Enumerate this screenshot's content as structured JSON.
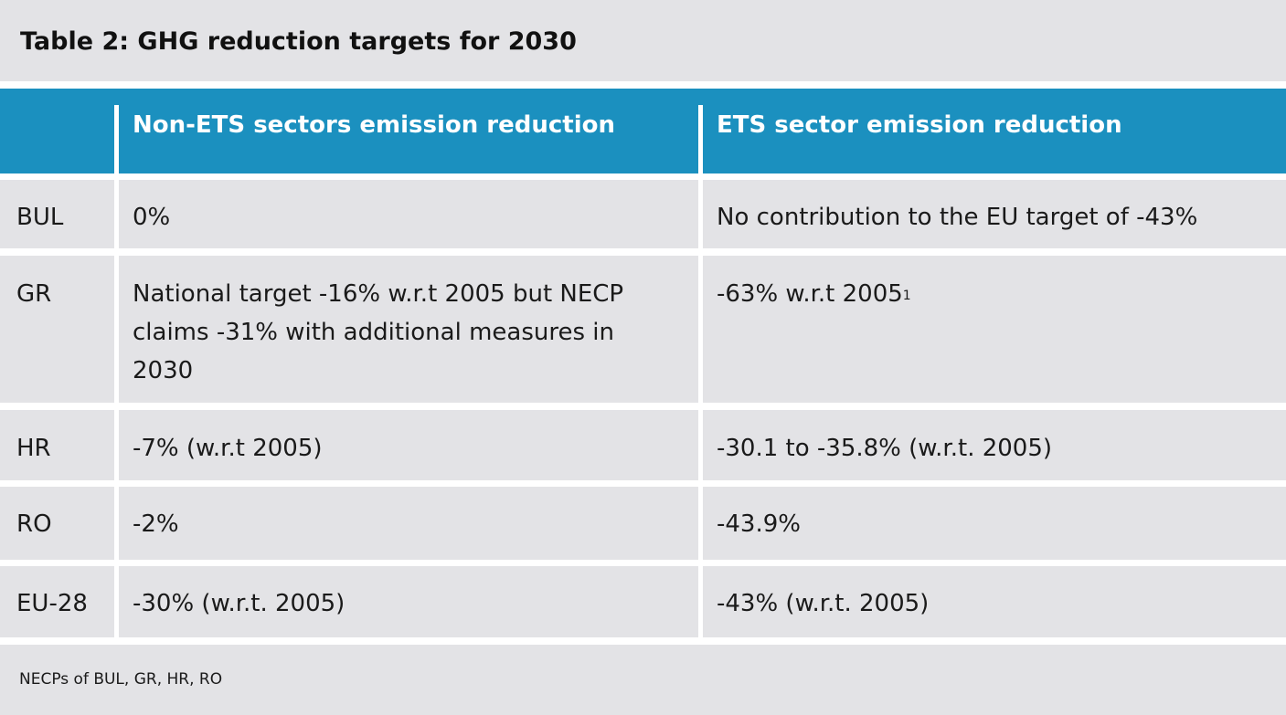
{
  "title": "Table 2: GHG reduction targets for 2030",
  "headers": {
    "col0": "",
    "col1": "Non-ETS sectors emission reduction",
    "col2": "ETS sector emission reduction"
  },
  "rows": [
    {
      "country": "BUL",
      "non_ets": "0%",
      "ets": "No contribution to the EU target of -43%",
      "ets_sup": ""
    },
    {
      "country": "GR",
      "non_ets": "National target -16% w.r.t 2005 but NECP claims -31% with additional measures in 2030",
      "ets": "-63% w.r.t 2005",
      "ets_sup": "1"
    },
    {
      "country": "HR",
      "non_ets": "-7% (w.r.t 2005)",
      "ets": "-30.1 to -35.8% (w.r.t. 2005)",
      "ets_sup": ""
    },
    {
      "country": "RO",
      "non_ets": "-2%",
      "ets": "-43.9%",
      "ets_sup": ""
    },
    {
      "country": "EU-28",
      "non_ets": "-30% (w.r.t. 2005)",
      "ets": "-43% (w.r.t. 2005)",
      "ets_sup": ""
    }
  ],
  "source": "NECPs of BUL, GR, HR, RO",
  "colors": {
    "header_bg": "#1b90bf",
    "cell_bg": "#e3e3e6"
  }
}
